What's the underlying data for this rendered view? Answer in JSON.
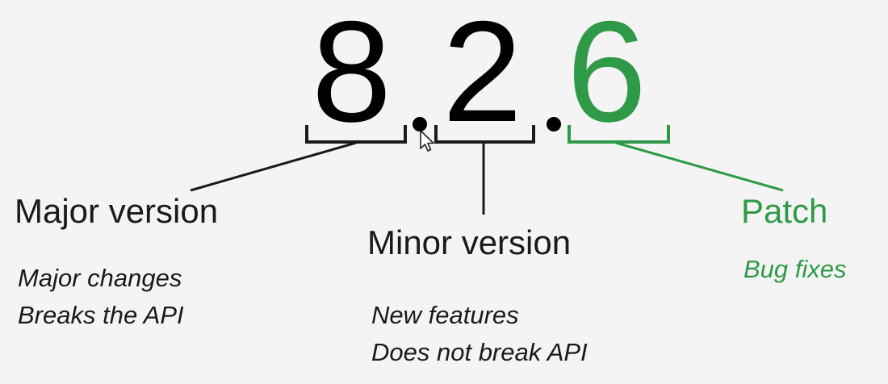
{
  "version": {
    "major": "8",
    "minor": "2",
    "patch": "6"
  },
  "labels": {
    "major": {
      "title": "Major version",
      "lines": [
        "Major changes",
        "Breaks the API"
      ]
    },
    "minor": {
      "title": "Minor version",
      "lines": [
        "New features",
        "Does not break API"
      ]
    },
    "patch": {
      "title": "Patch",
      "lines": [
        "Bug fixes"
      ]
    }
  },
  "colors": {
    "text": "#1a1a1a",
    "accent": "#2e9a48",
    "background": "#f4f4f4"
  },
  "icons": {
    "cursor": "mouse-pointer-icon"
  }
}
